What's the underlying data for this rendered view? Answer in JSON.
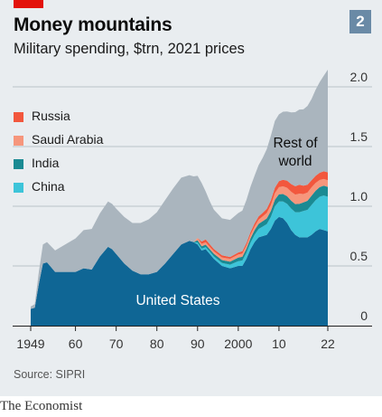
{
  "header": {
    "title": "Money mountains",
    "subtitle": "Military spending, $trn, 2021 prices",
    "chart_number": "2"
  },
  "footer": {
    "source": "Source: SIPRI",
    "brand": "The Economist"
  },
  "colors": {
    "background": "#e9edf0",
    "us": "#0f6695",
    "china": "#3dc4d9",
    "india": "#1a8a93",
    "saudi": "#f6967c",
    "russia": "#f2573d",
    "rest": "#aab5be",
    "accent_red": "#e3120b",
    "badge": "#6a8aa6"
  },
  "chart_data": {
    "type": "area",
    "stacked": true,
    "title": "Money mountains",
    "subtitle": "Military spending, $trn, 2021 prices",
    "units": "$trn, 2021 prices",
    "xlim": [
      1949,
      2022
    ],
    "ylim": [
      0,
      2.0
    ],
    "x_ticks": [
      1949,
      1960,
      1970,
      1980,
      1990,
      2000,
      2010,
      2022
    ],
    "x_tick_labels": [
      "1949",
      "60",
      "70",
      "80",
      "90",
      "2000",
      "10",
      "22"
    ],
    "y_ticks": [
      0,
      0.5,
      1.0,
      1.5,
      2.0
    ],
    "y_tick_labels": [
      "0",
      "0.5",
      "1.0",
      "1.5",
      "2.0"
    ],
    "grid": "horizontal",
    "legend_position": "top-left",
    "legend": [
      "Russia",
      "Saudi Arabia",
      "India",
      "China"
    ],
    "annotations": [
      {
        "text": "United States",
        "series": "United States"
      },
      {
        "text": "Rest of world",
        "series": "Rest of world"
      }
    ],
    "x": [
      1949,
      1950,
      1951,
      1952,
      1953,
      1955,
      1958,
      1960,
      1962,
      1964,
      1966,
      1968,
      1969,
      1970,
      1972,
      1974,
      1976,
      1978,
      1980,
      1982,
      1984,
      1986,
      1988,
      1989,
      1990,
      1991,
      1992,
      1993,
      1994,
      1996,
      1998,
      2000,
      2001,
      2002,
      2003,
      2004,
      2005,
      2006,
      2007,
      2008,
      2009,
      2010,
      2011,
      2012,
      2013,
      2014,
      2015,
      2016,
      2017,
      2018,
      2019,
      2020,
      2021,
      2022
    ],
    "series": [
      {
        "name": "United States",
        "color": "#0f6695",
        "values": [
          0.14,
          0.15,
          0.35,
          0.52,
          0.53,
          0.45,
          0.45,
          0.45,
          0.48,
          0.47,
          0.58,
          0.66,
          0.64,
          0.6,
          0.52,
          0.46,
          0.43,
          0.43,
          0.45,
          0.52,
          0.6,
          0.68,
          0.71,
          0.7,
          0.68,
          0.63,
          0.64,
          0.6,
          0.56,
          0.5,
          0.48,
          0.5,
          0.5,
          0.56,
          0.64,
          0.7,
          0.74,
          0.75,
          0.76,
          0.81,
          0.88,
          0.91,
          0.9,
          0.86,
          0.8,
          0.76,
          0.74,
          0.74,
          0.74,
          0.76,
          0.79,
          0.81,
          0.8,
          0.79
        ]
      },
      {
        "name": "China",
        "color": "#3dc4d9",
        "values": [
          0,
          0,
          0,
          0,
          0,
          0,
          0,
          0,
          0,
          0,
          0,
          0,
          0,
          0,
          0,
          0,
          0,
          0,
          0,
          0,
          0,
          0,
          0,
          0,
          0.015,
          0.015,
          0.018,
          0.02,
          0.02,
          0.025,
          0.03,
          0.04,
          0.045,
          0.05,
          0.055,
          0.06,
          0.07,
          0.08,
          0.09,
          0.1,
          0.12,
          0.13,
          0.14,
          0.16,
          0.18,
          0.19,
          0.21,
          0.22,
          0.23,
          0.25,
          0.26,
          0.27,
          0.29,
          0.29
        ]
      },
      {
        "name": "India",
        "color": "#1a8a93",
        "values": [
          0,
          0,
          0,
          0,
          0,
          0,
          0,
          0,
          0,
          0,
          0,
          0,
          0,
          0,
          0,
          0,
          0,
          0,
          0,
          0,
          0,
          0,
          0,
          0,
          0.02,
          0.02,
          0.02,
          0.02,
          0.022,
          0.024,
          0.026,
          0.03,
          0.032,
          0.034,
          0.036,
          0.04,
          0.042,
          0.045,
          0.048,
          0.05,
          0.055,
          0.06,
          0.062,
          0.064,
          0.066,
          0.068,
          0.07,
          0.072,
          0.075,
          0.078,
          0.08,
          0.08,
          0.082,
          0.082
        ]
      },
      {
        "name": "Saudi Arabia",
        "color": "#f6967c",
        "values": [
          0,
          0,
          0,
          0,
          0,
          0,
          0,
          0,
          0,
          0,
          0,
          0,
          0,
          0,
          0,
          0,
          0,
          0,
          0,
          0,
          0,
          0,
          0,
          0,
          0.02,
          0.02,
          0.02,
          0.02,
          0.02,
          0.022,
          0.024,
          0.026,
          0.026,
          0.026,
          0.028,
          0.03,
          0.035,
          0.04,
          0.045,
          0.05,
          0.055,
          0.06,
          0.065,
          0.07,
          0.075,
          0.08,
          0.085,
          0.07,
          0.07,
          0.07,
          0.065,
          0.06,
          0.056,
          0.056
        ]
      },
      {
        "name": "Russia",
        "color": "#f2573d",
        "values": [
          0,
          0,
          0,
          0,
          0,
          0,
          0,
          0,
          0,
          0,
          0,
          0,
          0,
          0,
          0,
          0,
          0,
          0,
          0,
          0,
          0,
          0,
          0,
          0,
          0,
          0.02,
          0.025,
          0.022,
          0.02,
          0.018,
          0.015,
          0.017,
          0.02,
          0.022,
          0.024,
          0.026,
          0.028,
          0.03,
          0.035,
          0.04,
          0.045,
          0.05,
          0.055,
          0.06,
          0.065,
          0.07,
          0.075,
          0.07,
          0.065,
          0.06,
          0.06,
          0.06,
          0.065,
          0.066
        ]
      },
      {
        "name": "Rest of world",
        "color": "#aab5be",
        "values": [
          0.02,
          0.03,
          0.1,
          0.16,
          0.17,
          0.18,
          0.24,
          0.28,
          0.32,
          0.34,
          0.36,
          0.38,
          0.38,
          0.38,
          0.39,
          0.4,
          0.43,
          0.46,
          0.5,
          0.53,
          0.55,
          0.56,
          0.55,
          0.55,
          0.52,
          0.49,
          0.4,
          0.36,
          0.33,
          0.31,
          0.31,
          0.33,
          0.34,
          0.36,
          0.38,
          0.4,
          0.43,
          0.46,
          0.5,
          0.54,
          0.56,
          0.56,
          0.57,
          0.58,
          0.6,
          0.62,
          0.63,
          0.64,
          0.66,
          0.68,
          0.72,
          0.76,
          0.8,
          0.86
        ]
      }
    ]
  }
}
